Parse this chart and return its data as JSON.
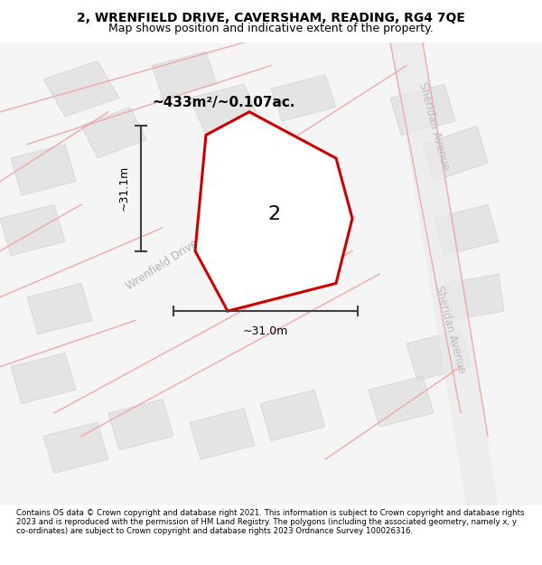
{
  "title_line1": "2, WRENFIELD DRIVE, CAVERSHAM, READING, RG4 7QE",
  "title_line2": "Map shows position and indicative extent of the property.",
  "footer_text": "Contains OS data © Crown copyright and database right 2021. This information is subject to Crown copyright and database rights 2023 and is reproduced with the permission of HM Land Registry. The polygons (including the associated geometry, namely x, y co-ordinates) are subject to Crown copyright and database rights 2023 Ordnance Survey 100026316.",
  "area_label": "~433m²/~0.107ac.",
  "property_number": "2",
  "dim_width": "~31.0m",
  "dim_height": "~31.1m",
  "road_label_wrenfield": "Wrenfield Drive",
  "road_label_sheridan1": "Sheridan Avenue",
  "road_label_sheridan2": "Sheridan Avenue",
  "bg_map_color": "#f5f5f5",
  "plot_bg_color": "#f0f0f0",
  "title_bg_color": "#ffffff",
  "footer_bg_color": "#ffffff",
  "property_polygon_color": "#cc0000",
  "property_fill_color": "#ffffff",
  "block_fill_color": "#e0e0e0",
  "road_line_color": "#f0a0a0",
  "dim_line_color": "#404040",
  "map_area": [
    0.0,
    0.09,
    1.0,
    0.91
  ]
}
